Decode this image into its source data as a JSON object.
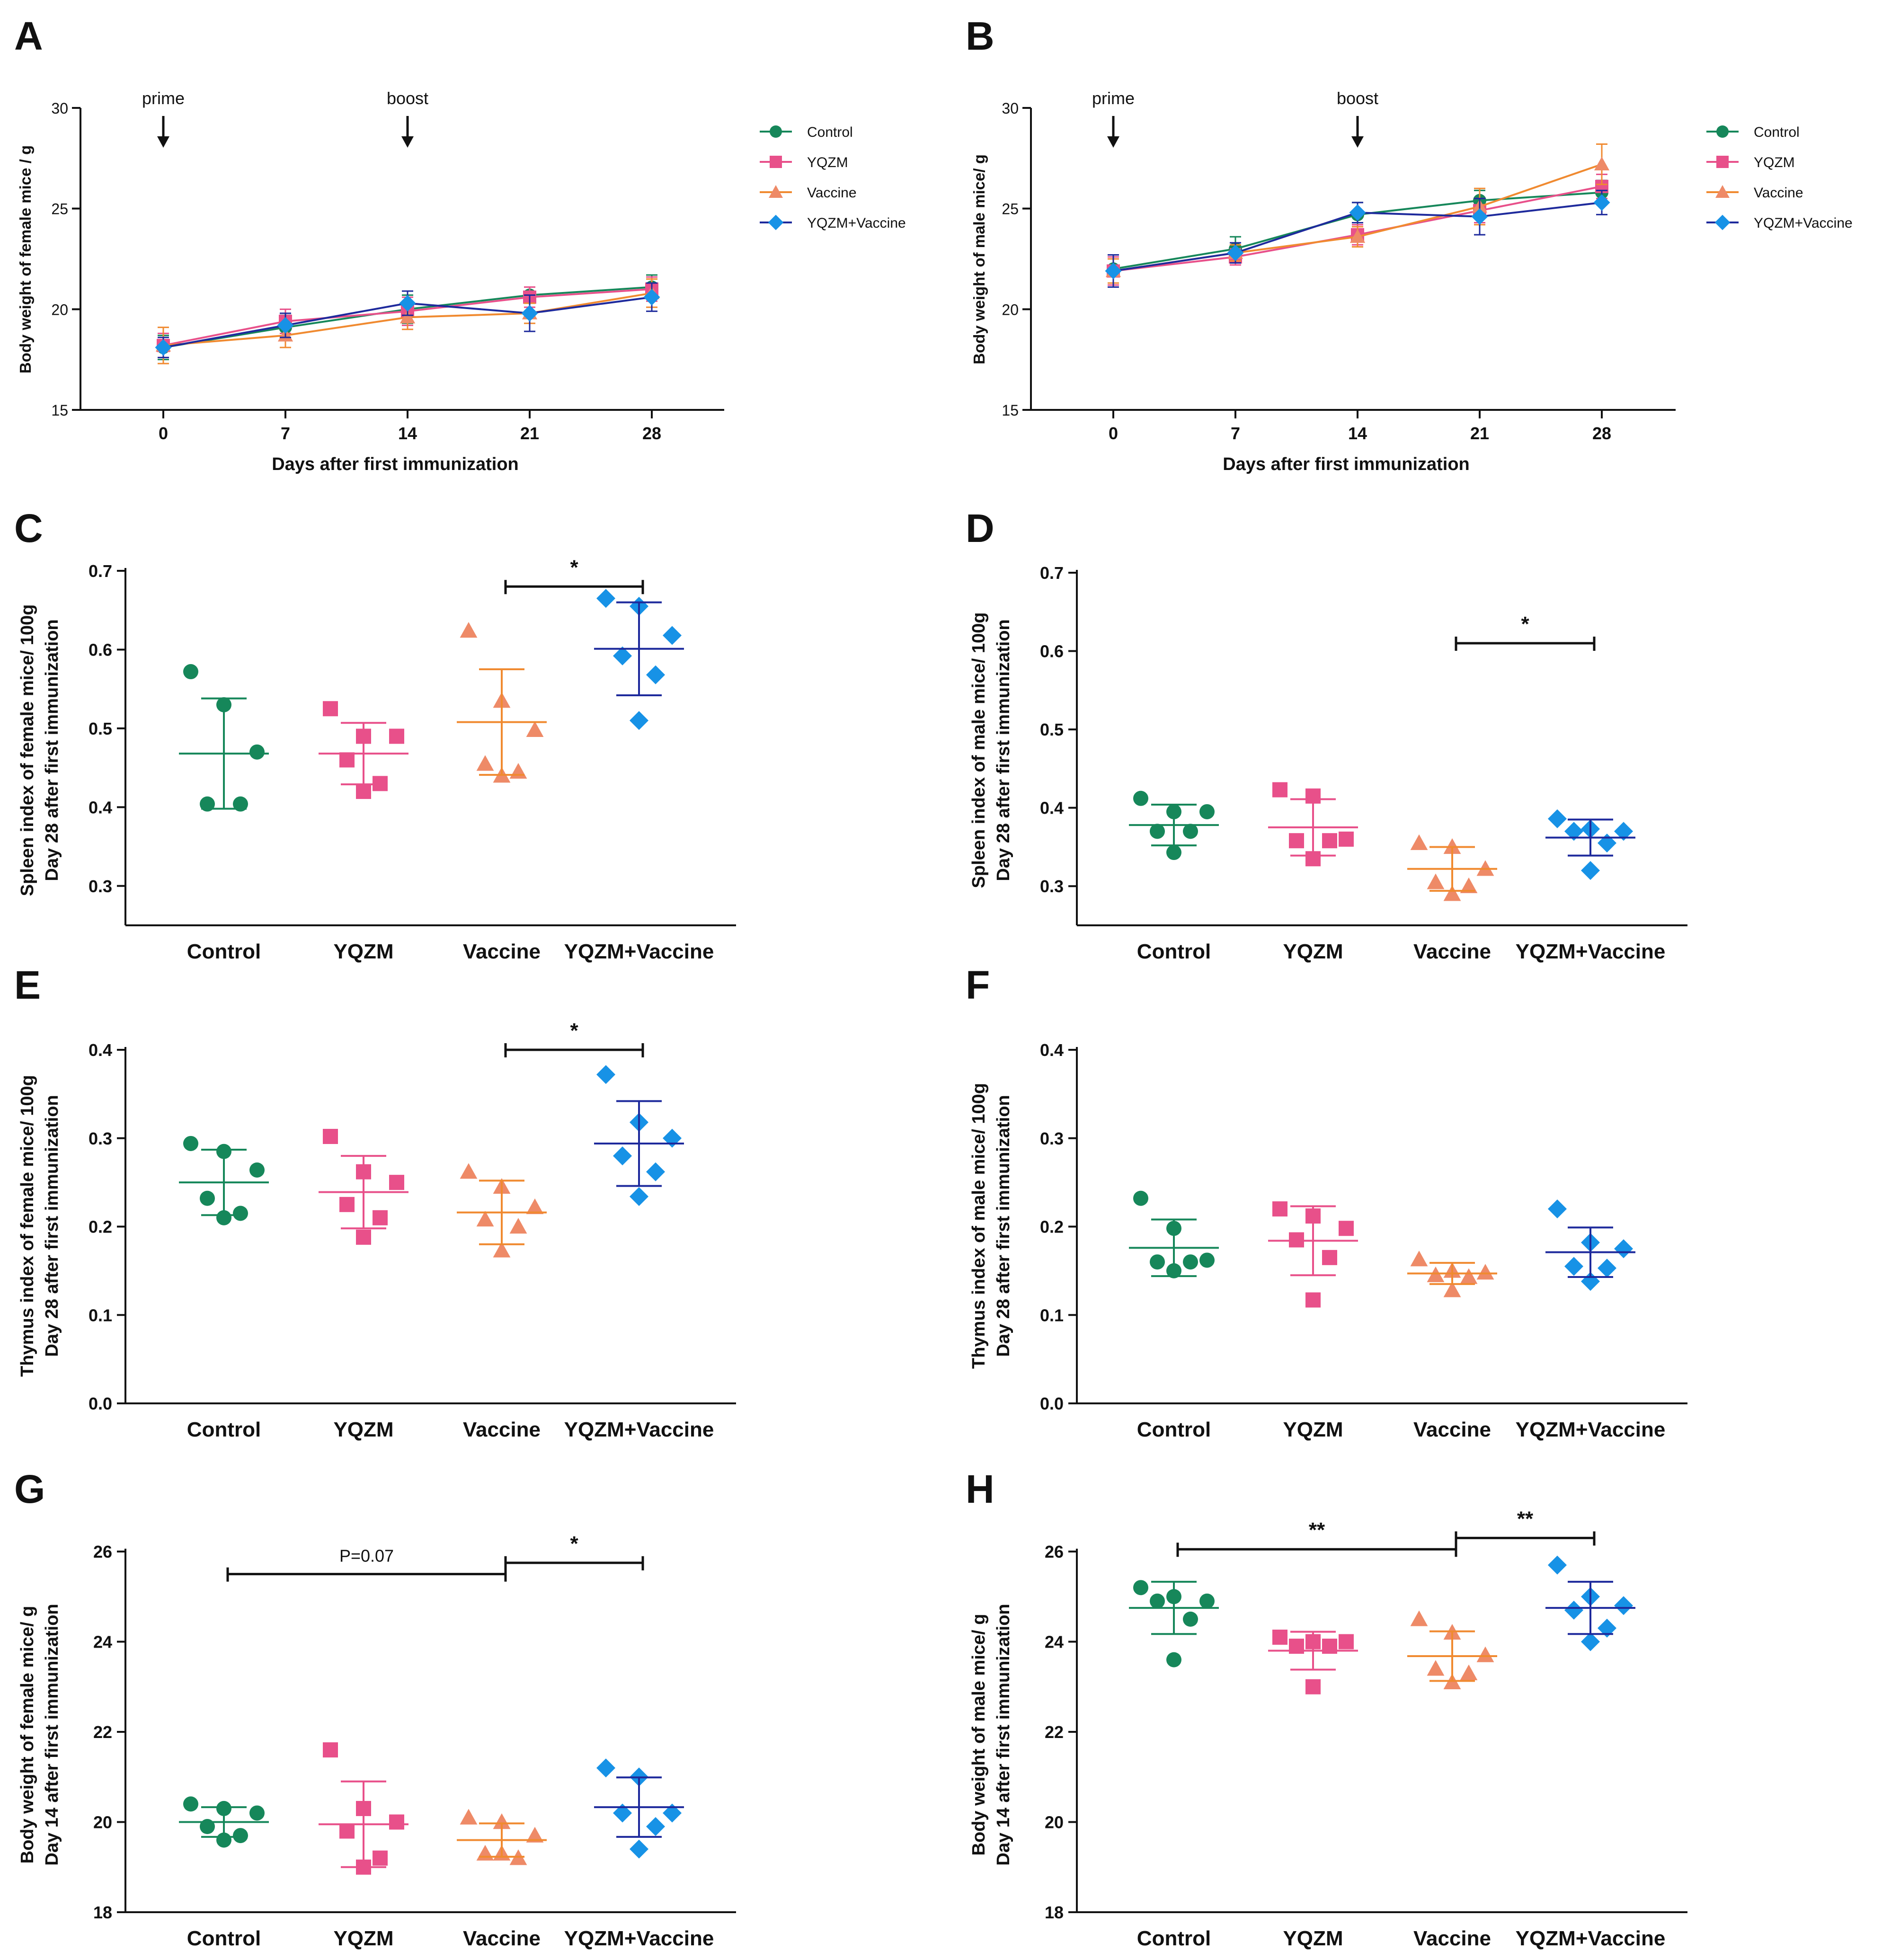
{
  "colors": {
    "Control": "#16875a",
    "YQZM": "#e8508a",
    "Vaccine": "#ee8a67",
    "YQZM+Vaccine": "#1792e6",
    "VaccineLine": "#f08a30",
    "YQZMVaccineLine": "#1e2a9c"
  },
  "chart_data": [
    {
      "id": "A",
      "type": "line",
      "panel_label": "A",
      "xlabel": "Days after first immunization",
      "ylabel": "Body weight of female mice / g",
      "x": [
        0,
        7,
        14,
        21,
        28
      ],
      "xticks": [
        "0",
        "7",
        "14",
        "21",
        "28"
      ],
      "ylim": [
        15,
        30
      ],
      "yticks": [
        "15",
        "20",
        "25",
        "30"
      ],
      "annotations": [
        {
          "text": "prime",
          "x": 0
        },
        {
          "text": "boost",
          "x": 14
        }
      ],
      "legend": [
        "Control",
        "YQZM",
        "Vaccine",
        "YQZM+Vaccine"
      ],
      "series": [
        {
          "name": "Control",
          "values": [
            18.1,
            19.1,
            20.0,
            20.7,
            21.1
          ],
          "err": [
            0.6,
            0.6,
            0.7,
            0.4,
            0.6
          ]
        },
        {
          "name": "YQZM",
          "values": [
            18.2,
            19.4,
            19.9,
            20.6,
            21.0
          ],
          "err": [
            0.6,
            0.6,
            0.7,
            0.5,
            0.6
          ]
        },
        {
          "name": "Vaccine",
          "values": [
            18.2,
            18.7,
            19.6,
            19.8,
            20.8
          ],
          "err": [
            0.9,
            0.6,
            0.6,
            0.5,
            0.7
          ]
        },
        {
          "name": "YQZM+Vaccine",
          "values": [
            18.1,
            19.2,
            20.3,
            19.8,
            20.6
          ],
          "err": [
            0.5,
            0.6,
            0.6,
            0.9,
            0.7
          ]
        }
      ]
    },
    {
      "id": "B",
      "type": "line",
      "panel_label": "B",
      "xlabel": "Days after first immunization",
      "ylabel": "Body weight of male mice/ g",
      "x": [
        0,
        7,
        14,
        21,
        28
      ],
      "xticks": [
        "0",
        "7",
        "14",
        "21",
        "28"
      ],
      "ylim": [
        15,
        30
      ],
      "yticks": [
        "15",
        "20",
        "25",
        "30"
      ],
      "annotations": [
        {
          "text": "prime",
          "x": 0
        },
        {
          "text": "boost",
          "x": 14
        }
      ],
      "legend": [
        "Control",
        "YQZM",
        "Vaccine",
        "YQZM+Vaccine"
      ],
      "series": [
        {
          "name": "Control",
          "values": [
            22.0,
            23.0,
            24.7,
            25.4,
            25.8
          ],
          "err": [
            0.7,
            0.6,
            0.6,
            0.5,
            0.6
          ]
        },
        {
          "name": "YQZM",
          "values": [
            21.9,
            22.6,
            23.7,
            24.9,
            26.1
          ],
          "err": [
            0.7,
            0.4,
            0.5,
            0.6,
            0.6
          ]
        },
        {
          "name": "Vaccine",
          "values": [
            21.9,
            22.8,
            23.6,
            25.1,
            27.2
          ],
          "err": [
            0.6,
            0.4,
            0.5,
            0.9,
            1.0
          ]
        },
        {
          "name": "YQZM+Vaccine",
          "values": [
            21.9,
            22.8,
            24.8,
            24.6,
            25.3
          ],
          "err": [
            0.8,
            0.5,
            0.5,
            0.9,
            0.6
          ]
        }
      ]
    },
    {
      "id": "C",
      "type": "scatter",
      "panel_label": "C",
      "ylabel_lines": [
        "Spleen index of female mice/ 100g",
        "Day 28 after first immunization"
      ],
      "categories": [
        "Control",
        "YQZM",
        "Vaccine",
        "YQZM+Vaccine"
      ],
      "ylim": [
        0.25,
        0.7
      ],
      "yticks": [
        "0.3",
        "0.4",
        "0.5",
        "0.6",
        "0.7"
      ],
      "series": [
        {
          "name": "Control",
          "points": [
            0.572,
            0.53,
            0.47,
            0.404,
            0.404
          ],
          "mean": 0.468,
          "sd": 0.07
        },
        {
          "name": "YQZM",
          "points": [
            0.525,
            0.49,
            0.49,
            0.46,
            0.43,
            0.42
          ],
          "mean": 0.468,
          "sd": 0.039
        },
        {
          "name": "Vaccine",
          "points": [
            0.624,
            0.535,
            0.498,
            0.455,
            0.445,
            0.44
          ],
          "mean": 0.508,
          "sd": 0.067
        },
        {
          "name": "YQZM+Vaccine",
          "points": [
            0.665,
            0.655,
            0.618,
            0.592,
            0.568,
            0.51
          ],
          "mean": 0.601,
          "sd": 0.059
        }
      ],
      "significance": [
        {
          "from": 2,
          "to": 3,
          "label": "*",
          "y": 0.68
        }
      ]
    },
    {
      "id": "D",
      "type": "scatter",
      "panel_label": "D",
      "ylabel_lines": [
        "Spleen index of male mice/ 100g",
        "Day 28 after first immunization"
      ],
      "categories": [
        "Control",
        "YQZM",
        "Vaccine",
        "YQZM+Vaccine"
      ],
      "ylim": [
        0.25,
        0.7
      ],
      "yticks": [
        "0.3",
        "0.4",
        "0.5",
        "0.6",
        "0.7"
      ],
      "series": [
        {
          "name": "Control",
          "points": [
            0.412,
            0.395,
            0.395,
            0.37,
            0.37,
            0.343
          ],
          "mean": 0.378,
          "sd": 0.026
        },
        {
          "name": "YQZM",
          "points": [
            0.423,
            0.415,
            0.36,
            0.358,
            0.358,
            0.335
          ],
          "mean": 0.375,
          "sd": 0.036
        },
        {
          "name": "Vaccine",
          "points": [
            0.355,
            0.35,
            0.322,
            0.305,
            0.3,
            0.29
          ],
          "mean": 0.322,
          "sd": 0.028
        },
        {
          "name": "YQZM+Vaccine",
          "points": [
            0.386,
            0.373,
            0.37,
            0.37,
            0.355,
            0.32
          ],
          "mean": 0.362,
          "sd": 0.023
        }
      ],
      "significance": [
        {
          "from": 2,
          "to": 3,
          "label": "*",
          "y": 0.61
        }
      ]
    },
    {
      "id": "E",
      "type": "scatter",
      "panel_label": "E",
      "ylabel_lines": [
        "Thymus index of female mice/ 100g",
        "Day 28 after first immunization"
      ],
      "categories": [
        "Control",
        "YQZM",
        "Vaccine",
        "YQZM+Vaccine"
      ],
      "ylim": [
        0.0,
        0.4
      ],
      "yticks": [
        "0.0",
        "0.1",
        "0.2",
        "0.3",
        "0.4"
      ],
      "series": [
        {
          "name": "Control",
          "points": [
            0.294,
            0.285,
            0.264,
            0.232,
            0.215,
            0.21
          ],
          "mean": 0.25,
          "sd": 0.037
        },
        {
          "name": "YQZM",
          "points": [
            0.302,
            0.262,
            0.25,
            0.225,
            0.21,
            0.188
          ],
          "mean": 0.239,
          "sd": 0.041
        },
        {
          "name": "Vaccine",
          "points": [
            0.262,
            0.245,
            0.222,
            0.208,
            0.2,
            0.173
          ],
          "mean": 0.216,
          "sd": 0.036
        },
        {
          "name": "YQZM+Vaccine",
          "points": [
            0.372,
            0.318,
            0.3,
            0.28,
            0.262,
            0.234
          ],
          "mean": 0.294,
          "sd": 0.048
        }
      ],
      "significance": [
        {
          "from": 2,
          "to": 3,
          "label": "*",
          "y": 0.4
        }
      ]
    },
    {
      "id": "F",
      "type": "scatter",
      "panel_label": "F",
      "ylabel_lines": [
        "Thymus index of male mice/ 100g",
        "Day 28 after first immunization"
      ],
      "categories": [
        "Control",
        "YQZM",
        "Vaccine",
        "YQZM+Vaccine"
      ],
      "ylim": [
        0.0,
        0.4
      ],
      "yticks": [
        "0.0",
        "0.1",
        "0.2",
        "0.3",
        "0.4"
      ],
      "series": [
        {
          "name": "Control",
          "points": [
            0.232,
            0.198,
            0.162,
            0.16,
            0.16,
            0.15
          ],
          "mean": 0.176,
          "sd": 0.032
        },
        {
          "name": "YQZM",
          "points": [
            0.22,
            0.212,
            0.198,
            0.185,
            0.165,
            0.117
          ],
          "mean": 0.184,
          "sd": 0.039
        },
        {
          "name": "Vaccine",
          "points": [
            0.163,
            0.15,
            0.148,
            0.145,
            0.143,
            0.128
          ],
          "mean": 0.147,
          "sd": 0.012
        },
        {
          "name": "YQZM+Vaccine",
          "points": [
            0.22,
            0.182,
            0.175,
            0.155,
            0.153,
            0.138
          ],
          "mean": 0.171,
          "sd": 0.028
        }
      ],
      "significance": []
    },
    {
      "id": "G",
      "type": "scatter",
      "panel_label": "G",
      "ylabel_lines": [
        "Body weight of female mice/ g",
        "Day 14 after first immunization"
      ],
      "categories": [
        "Control",
        "YQZM",
        "Vaccine",
        "YQZM+Vaccine"
      ],
      "ylim": [
        18,
        26
      ],
      "yticks": [
        "18",
        "20",
        "22",
        "24",
        "26"
      ],
      "series": [
        {
          "name": "Control",
          "points": [
            20.4,
            20.3,
            20.2,
            19.9,
            19.7,
            19.6
          ],
          "mean": 20.0,
          "sd": 0.33
        },
        {
          "name": "YQZM",
          "points": [
            21.6,
            20.3,
            20.0,
            19.8,
            19.2,
            19.0
          ],
          "mean": 19.95,
          "sd": 0.95
        },
        {
          "name": "Vaccine",
          "points": [
            20.1,
            20.0,
            19.7,
            19.3,
            19.2,
            19.3
          ],
          "mean": 19.6,
          "sd": 0.37
        },
        {
          "name": "YQZM+Vaccine",
          "points": [
            21.2,
            21.0,
            20.2,
            20.2,
            19.9,
            19.4
          ],
          "mean": 20.33,
          "sd": 0.66
        }
      ],
      "significance": [
        {
          "from": 2,
          "to": 3,
          "label": "*",
          "y": 25.75
        },
        {
          "from": 0,
          "to": 2,
          "label": "P=0.07",
          "y": 25.5
        }
      ]
    },
    {
      "id": "H",
      "type": "scatter",
      "panel_label": "H",
      "ylabel_lines": [
        "Body weight of male mice/ g",
        "Day 14 after first immunization"
      ],
      "categories": [
        "Control",
        "YQZM",
        "Vaccine",
        "YQZM+Vaccine"
      ],
      "ylim": [
        18,
        26
      ],
      "yticks": [
        "18",
        "20",
        "22",
        "24",
        "26"
      ],
      "series": [
        {
          "name": "Control",
          "points": [
            25.2,
            25.0,
            24.9,
            24.9,
            24.5,
            23.6
          ],
          "mean": 24.75,
          "sd": 0.58
        },
        {
          "name": "YQZM",
          "points": [
            24.1,
            24.0,
            24.0,
            23.9,
            23.9,
            23.0
          ],
          "mean": 23.8,
          "sd": 0.42
        },
        {
          "name": "Vaccine",
          "points": [
            24.5,
            24.2,
            23.7,
            23.4,
            23.3,
            23.1
          ],
          "mean": 23.68,
          "sd": 0.55
        },
        {
          "name": "YQZM+Vaccine",
          "points": [
            25.7,
            25.0,
            24.8,
            24.7,
            24.3,
            24.0
          ],
          "mean": 24.75,
          "sd": 0.58
        }
      ],
      "significance": [
        {
          "from": 2,
          "to": 3,
          "label": "**",
          "y": 26.3
        },
        {
          "from": 0,
          "to": 2,
          "label": "**",
          "y": 26.05
        }
      ]
    }
  ]
}
